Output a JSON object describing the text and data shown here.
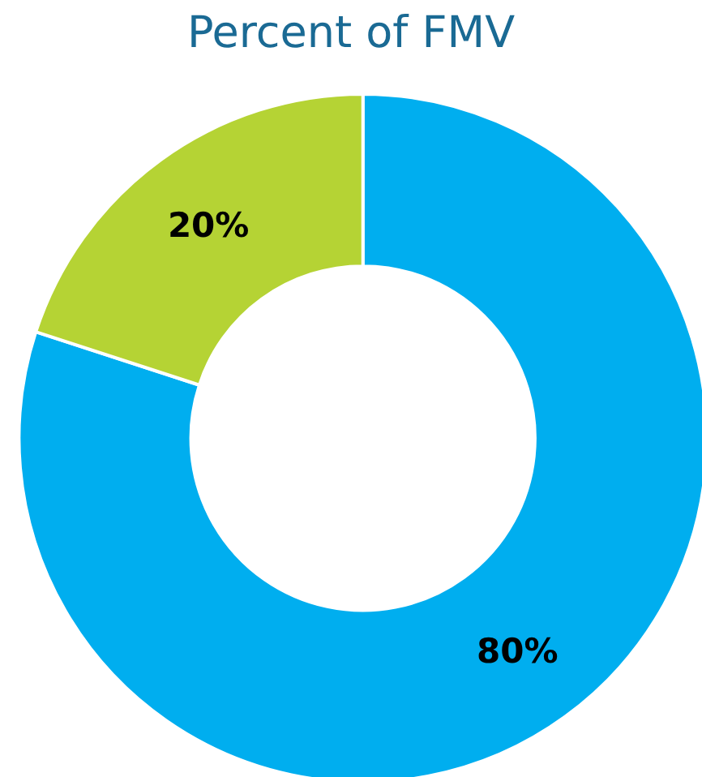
{
  "chart_data": {
    "type": "donut",
    "title": "Percent of FMV",
    "categories": [
      null,
      null
    ],
    "values": [
      80,
      20
    ],
    "colors": [
      "#00aeef",
      "#b5d334"
    ],
    "value_labels": [
      "80%",
      "20%"
    ]
  }
}
